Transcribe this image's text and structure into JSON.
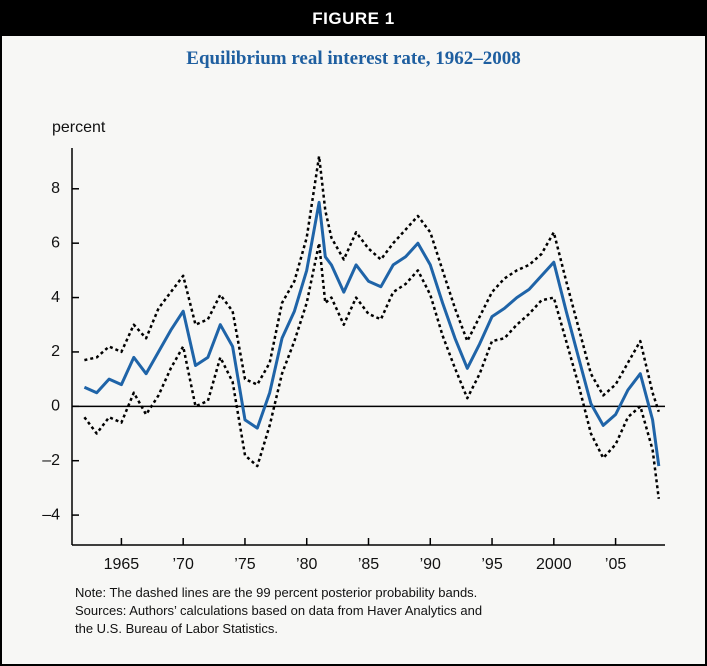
{
  "header": "FIGURE 1",
  "chart_data": {
    "type": "line",
    "title": "Equilibrium real interest rate, 1962–2008",
    "y_label": "percent",
    "notes": [
      "Note: The dashed lines are the 99 percent posterior probability bands.",
      "Sources: Authors’ calculations based on data from Haver Analytics and",
      "the U.S. Bureau of Labor Statistics."
    ],
    "x": [
      1962,
      1963,
      1964,
      1965,
      1966,
      1967,
      1968,
      1969,
      1970,
      1971,
      1972,
      1973,
      1974,
      1975,
      1976,
      1977,
      1978,
      1979,
      1980,
      1981,
      1981.5,
      1982,
      1983,
      1984,
      1985,
      1986,
      1987,
      1988,
      1989,
      1990,
      1991,
      1992,
      1993,
      1994,
      1995,
      1996,
      1997,
      1998,
      1999,
      2000,
      2001,
      2002,
      2003,
      2004,
      2005,
      2006,
      2007,
      2008,
      2008.5
    ],
    "series": [
      {
        "color": "#1f64a8",
        "dashed": false,
        "values": [
          0.7,
          0.5,
          1.0,
          0.8,
          1.8,
          1.2,
          2.0,
          2.8,
          3.5,
          1.5,
          1.8,
          3.0,
          2.2,
          -0.5,
          -0.8,
          0.5,
          2.5,
          3.5,
          5.0,
          7.5,
          5.5,
          5.2,
          4.2,
          5.2,
          4.6,
          4.4,
          5.2,
          5.5,
          6.0,
          5.2,
          3.8,
          2.5,
          1.4,
          2.3,
          3.3,
          3.6,
          4.0,
          4.3,
          4.8,
          5.3,
          3.5,
          1.8,
          0.1,
          -0.7,
          -0.3,
          0.6,
          1.2,
          -0.5,
          -2.2
        ]
      },
      {
        "color": "#000000",
        "dashed": true,
        "values": [
          1.7,
          1.8,
          2.2,
          2.0,
          3.0,
          2.5,
          3.6,
          4.2,
          4.8,
          3.0,
          3.2,
          4.1,
          3.5,
          1.0,
          0.8,
          1.6,
          3.8,
          4.6,
          6.2,
          9.2,
          7.2,
          6.2,
          5.4,
          6.4,
          5.8,
          5.4,
          6.0,
          6.5,
          7.0,
          6.4,
          5.0,
          3.6,
          2.4,
          3.3,
          4.2,
          4.7,
          5.0,
          5.2,
          5.6,
          6.4,
          4.6,
          2.9,
          1.2,
          0.4,
          0.8,
          1.6,
          2.4,
          0.5,
          -0.2
        ]
      },
      {
        "color": "#000000",
        "dashed": true,
        "values": [
          -0.4,
          -1.0,
          -0.4,
          -0.6,
          0.5,
          -0.3,
          0.4,
          1.4,
          2.2,
          0.0,
          0.2,
          1.8,
          0.9,
          -1.8,
          -2.2,
          -0.7,
          1.2,
          2.4,
          3.8,
          6.0,
          3.8,
          4.0,
          3.0,
          4.0,
          3.4,
          3.2,
          4.2,
          4.5,
          5.0,
          4.1,
          2.6,
          1.4,
          0.3,
          1.2,
          2.4,
          2.5,
          3.0,
          3.4,
          3.9,
          4.0,
          2.4,
          0.8,
          -1.0,
          -1.9,
          -1.4,
          -0.4,
          0.0,
          -1.6,
          -3.4
        ]
      }
    ],
    "xlim": [
      1961,
      2009
    ],
    "xticks": [
      {
        "value": 1965,
        "label": "1965"
      },
      {
        "value": 1970,
        "label": "’70"
      },
      {
        "value": 1975,
        "label": "’75"
      },
      {
        "value": 1980,
        "label": "’80"
      },
      {
        "value": 1985,
        "label": "’85"
      },
      {
        "value": 1990,
        "label": "’90"
      },
      {
        "value": 1995,
        "label": "’95"
      },
      {
        "value": 2000,
        "label": "2000"
      },
      {
        "value": 2005,
        "label": "’05"
      }
    ],
    "ylim": [
      -5.1,
      9.5
    ],
    "yticks": [
      {
        "value": -4,
        "label": "–4"
      },
      {
        "value": -2,
        "label": "–2"
      },
      0,
      2,
      4,
      6,
      8
    ],
    "zero_line": true
  }
}
